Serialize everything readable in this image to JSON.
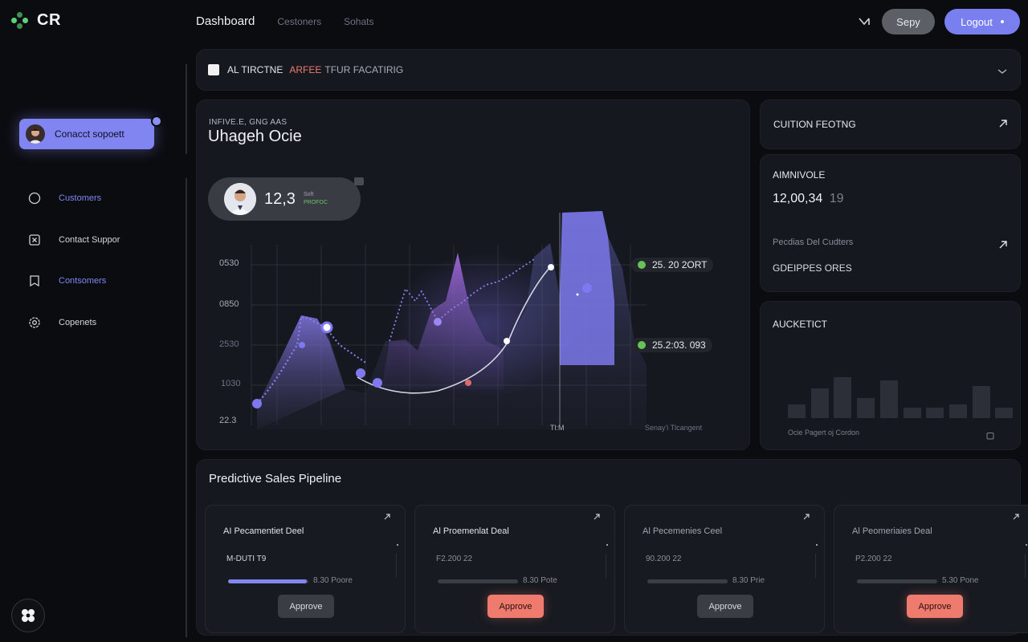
{
  "brand": {
    "logo_text": "CR",
    "accent": "#7a7ff0",
    "green": "#5fd07a",
    "alert": "#ef7b6e"
  },
  "nav": {
    "active": "Dashboard",
    "item1": "Cestoners",
    "item2": "Sohats"
  },
  "top": {
    "mail_icon": "mail-icon",
    "sepy": "Sepy",
    "logout": "Logout"
  },
  "sidebar": {
    "contact_button": "Conacct sopoett",
    "items": [
      {
        "label": "Customers",
        "icon": "circle-icon",
        "color": "#8186f2"
      },
      {
        "label": "Contact Suppor",
        "icon": "support-icon",
        "color": "#d4d6de"
      },
      {
        "label": "Contsomers",
        "icon": "bookmark-icon",
        "color": "#8186f2"
      },
      {
        "label": "Copenets",
        "icon": "gear-icon",
        "color": "#d4d6de"
      }
    ]
  },
  "alert": {
    "prefix": "AL TIRCTNE",
    "highlight": "ARFEE",
    "suffix": "TFUR FACATIRIG"
  },
  "main_chart": {
    "subtitle": "INFIVE.E, GNG   AAS",
    "title": "Uhageh Ocie",
    "pill": {
      "value": "12,3",
      "label_top": "Soft",
      "label_bottom": "PROFOC"
    },
    "y_labels": [
      "0530",
      "0850",
      "2530",
      "1030",
      "22.3"
    ],
    "tag1": "25. 20 2ORT",
    "tag2": "25.2:03. 093",
    "x_label_mid": "Tl:M",
    "x_label_right": "Senay'i Tlcangent"
  },
  "panel1": {
    "title": "CUITION FEOTNG"
  },
  "panel2": {
    "title": "AIMNIVOLE",
    "value": "12,00,34",
    "value_dim": "19",
    "sub": "Pecdias Del Cudters",
    "label": "GDEIPPES ORES"
  },
  "panel3": {
    "title": "AUCKETICT",
    "footer": "Ocie Pagert oj Cordon",
    "bars": [
      0.2,
      0.43,
      0.6,
      0.3,
      0.55,
      0.15,
      0.15,
      0.2,
      0.47,
      0.15
    ]
  },
  "pipeline": {
    "title": "Predictive Sales Pipeline",
    "cards": [
      {
        "title": "AI Pecamentiet Deel",
        "value": "M-DUTI T9",
        "progress": 0.98,
        "pct": "8.30 Poore",
        "action": "Approve",
        "style": "grey"
      },
      {
        "title": "Al Proemenlat Deal",
        "value": "F2.200 22",
        "progress": 0,
        "pct": "8.30 Pote",
        "action": "Approve",
        "style": "red"
      },
      {
        "title": "Al Pecemenies Ceel",
        "value": "90.200 22",
        "progress": 0,
        "pct": "8.30 Prie",
        "action": "Approve",
        "style": "grey"
      },
      {
        "title": "Al Peomeriaies Deal",
        "value": "P2.200 22",
        "progress": 0,
        "pct": "5.30 Pone",
        "action": "Approve",
        "style": "red"
      }
    ]
  }
}
